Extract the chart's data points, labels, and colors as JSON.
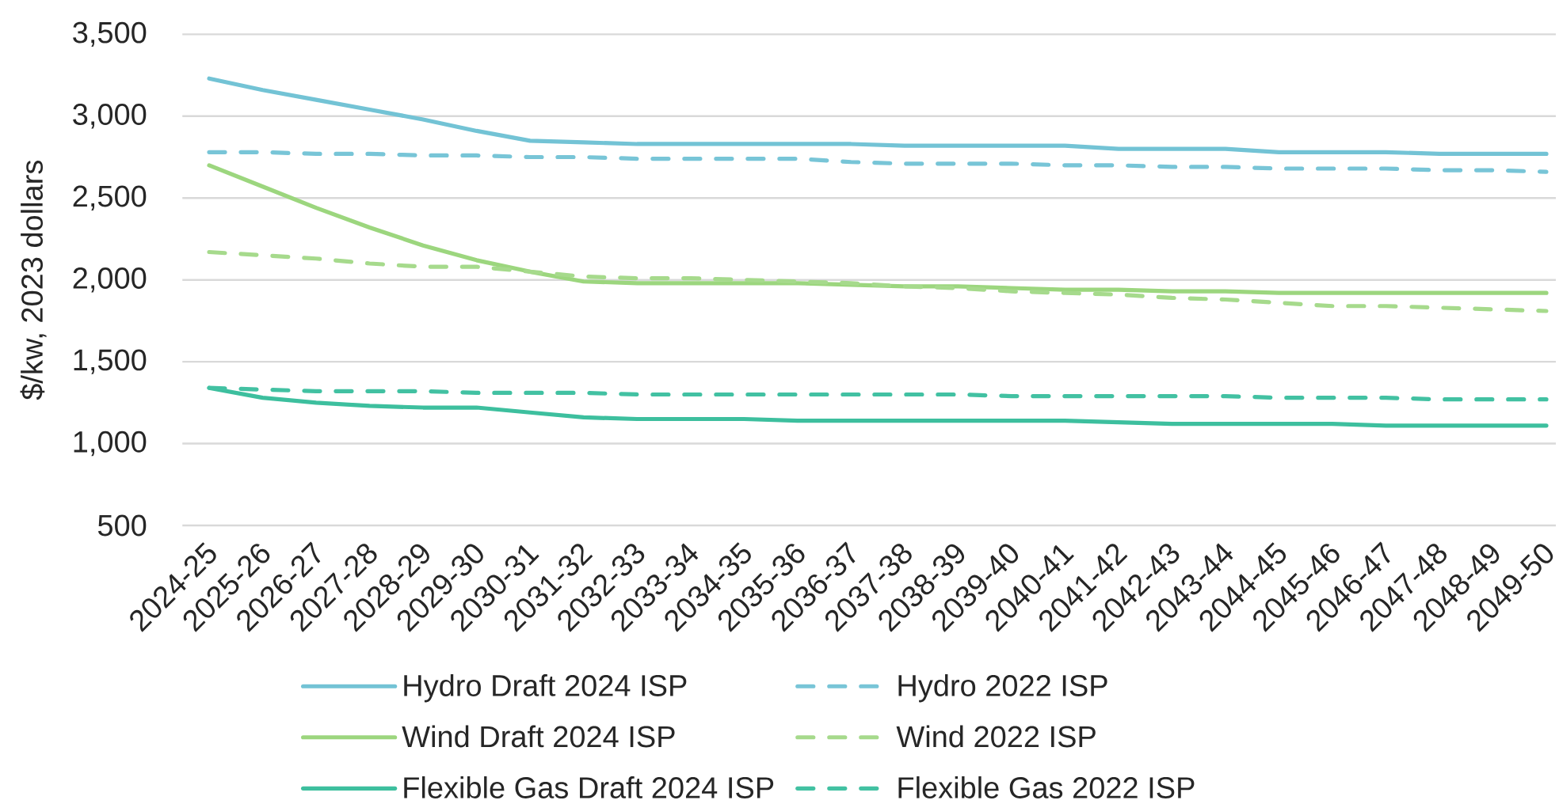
{
  "chart_data": {
    "type": "line",
    "ylabel": "$/kw, 2023 dollars",
    "categories": [
      "2024-25",
      "2025-26",
      "2026-27",
      "2027-28",
      "2028-29",
      "2029-30",
      "2030-31",
      "2031-32",
      "2032-33",
      "2033-34",
      "2034-35",
      "2035-36",
      "2036-37",
      "2037-38",
      "2038-39",
      "2039-40",
      "2040-41",
      "2041-42",
      "2042-43",
      "2043-44",
      "2044-45",
      "2045-46",
      "2046-47",
      "2047-48",
      "2048-49",
      "2049-50"
    ],
    "ylim": [
      500,
      3500
    ],
    "yticks": [
      500,
      {
        "value": 1000,
        "label": "1,000"
      },
      {
        "value": 1500,
        "label": "1,500"
      },
      {
        "value": 2000,
        "label": "2,000"
      },
      {
        "value": 2500,
        "label": "2,500"
      },
      {
        "value": 3000,
        "label": "3,000"
      },
      {
        "value": 3500,
        "label": "3,500"
      }
    ],
    "grid": "y",
    "legend": "bottom",
    "series": [
      {
        "name": "Hydro Draft 2024 ISP",
        "color": "#73c3d5",
        "line_style": "solid",
        "values": [
          3230,
          3160,
          3100,
          3040,
          2980,
          2910,
          2850,
          2840,
          2830,
          2830,
          2830,
          2830,
          2830,
          2820,
          2820,
          2820,
          2820,
          2800,
          2800,
          2800,
          2780,
          2780,
          2780,
          2770,
          2770,
          2770
        ]
      },
      {
        "name": "Hydro 2022 ISP",
        "color": "#78c5d7",
        "line_style": "dashed",
        "values": [
          2780,
          2780,
          2770,
          2770,
          2760,
          2760,
          2750,
          2750,
          2740,
          2740,
          2740,
          2740,
          2720,
          2710,
          2710,
          2710,
          2700,
          2700,
          2690,
          2690,
          2680,
          2680,
          2680,
          2670,
          2670,
          2660
        ]
      },
      {
        "name": "Wind Draft 2024 ISP",
        "color": "#9cd67e",
        "line_style": "solid",
        "values": [
          2700,
          2570,
          2440,
          2320,
          2210,
          2120,
          2050,
          1990,
          1980,
          1980,
          1980,
          1980,
          1970,
          1960,
          1960,
          1950,
          1940,
          1940,
          1930,
          1930,
          1920,
          1920,
          1920,
          1920,
          1920,
          1920
        ]
      },
      {
        "name": "Wind 2022 ISP",
        "color": "#a6da8c",
        "line_style": "dashed",
        "values": [
          2170,
          2150,
          2130,
          2100,
          2080,
          2080,
          2050,
          2020,
          2010,
          2010,
          2000,
          1990,
          1980,
          1960,
          1950,
          1930,
          1920,
          1910,
          1890,
          1880,
          1860,
          1840,
          1840,
          1830,
          1820,
          1810
        ]
      },
      {
        "name": "Flexible Gas Draft 2024 ISP",
        "color": "#3dbf9e",
        "line_style": "solid",
        "values": [
          1340,
          1280,
          1250,
          1230,
          1220,
          1220,
          1190,
          1160,
          1150,
          1150,
          1150,
          1140,
          1140,
          1140,
          1140,
          1140,
          1140,
          1130,
          1120,
          1120,
          1120,
          1120,
          1110,
          1110,
          1110,
          1110
        ]
      },
      {
        "name": "Flexible Gas 2022 ISP",
        "color": "#42c1a2",
        "line_style": "dashed",
        "values": [
          1340,
          1330,
          1320,
          1320,
          1320,
          1310,
          1310,
          1310,
          1300,
          1300,
          1300,
          1300,
          1300,
          1300,
          1300,
          1290,
          1290,
          1290,
          1290,
          1290,
          1280,
          1280,
          1280,
          1270,
          1270,
          1270
        ]
      }
    ]
  }
}
